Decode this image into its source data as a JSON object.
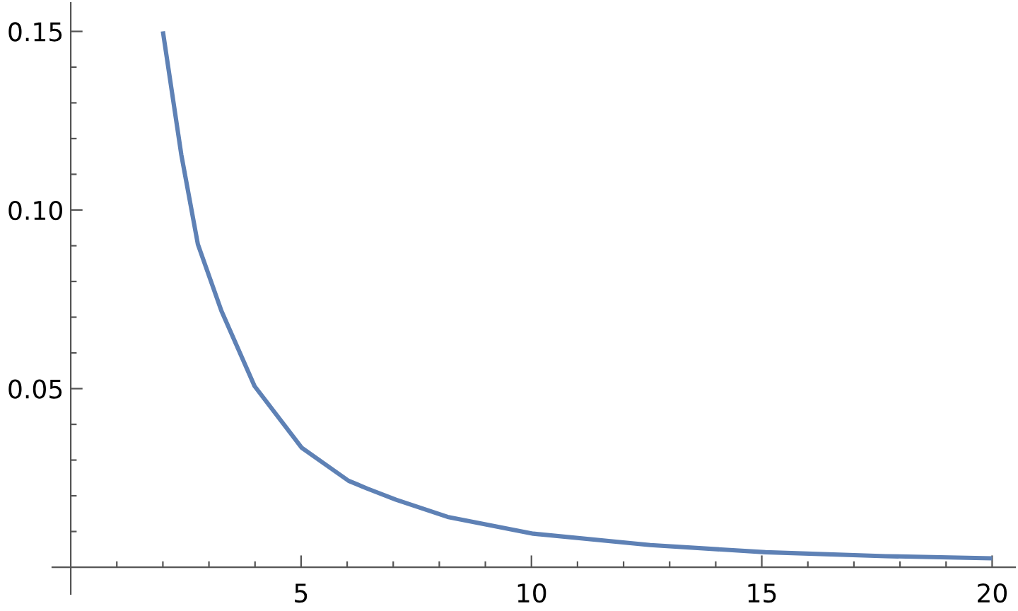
{
  "chart_data": {
    "type": "line",
    "series": [
      {
        "color": "#5e81b5",
        "x": [
          2.0,
          2.4,
          2.76,
          3.27,
          3.99,
          5.01,
          6.03,
          6.44,
          7.06,
          8.18,
          10.04,
          12.58,
          15.08,
          17.69,
          20.0
        ],
        "values": [
          0.15,
          0.1155,
          0.0904,
          0.0718,
          0.0507,
          0.0335,
          0.0242,
          0.022,
          0.0189,
          0.0141,
          0.0094,
          0.0062,
          0.0042,
          0.0031,
          0.0025
        ]
      }
    ],
    "xlim": [
      -0.4,
      20.5
    ],
    "ylim": [
      -0.0075,
      0.158
    ],
    "xticks": [
      {
        "value": 1,
        "label": null
      },
      {
        "value": 2,
        "label": null
      },
      {
        "value": 3,
        "label": null
      },
      {
        "value": 4,
        "label": null
      },
      5,
      {
        "value": 6,
        "label": null
      },
      {
        "value": 7,
        "label": null
      },
      {
        "value": 8,
        "label": null
      },
      {
        "value": 9,
        "label": null
      },
      10,
      {
        "value": 11,
        "label": null
      },
      {
        "value": 12,
        "label": null
      },
      {
        "value": 13,
        "label": null
      },
      {
        "value": 14,
        "label": null
      },
      15,
      {
        "value": 16,
        "label": null
      },
      {
        "value": 17,
        "label": null
      },
      {
        "value": 18,
        "label": null
      },
      {
        "value": 19,
        "label": null
      },
      20
    ],
    "yticks": [
      {
        "value": 0.01,
        "label": null
      },
      {
        "value": 0.02,
        "label": null
      },
      {
        "value": 0.03,
        "label": null
      },
      {
        "value": 0.04,
        "label": null
      },
      {
        "value": 0.05,
        "label": "0.05"
      },
      {
        "value": 0.06,
        "label": null
      },
      {
        "value": 0.07,
        "label": null
      },
      {
        "value": 0.08,
        "label": null
      },
      {
        "value": 0.09,
        "label": null
      },
      {
        "value": 0.1,
        "label": "0.10"
      },
      {
        "value": 0.11,
        "label": null
      },
      {
        "value": 0.12,
        "label": null
      },
      {
        "value": 0.13,
        "label": null
      },
      {
        "value": 0.14,
        "label": null
      },
      {
        "value": 0.15,
        "label": "0.15"
      }
    ],
    "grid": false,
    "marker": "none",
    "line_style": "solid"
  }
}
